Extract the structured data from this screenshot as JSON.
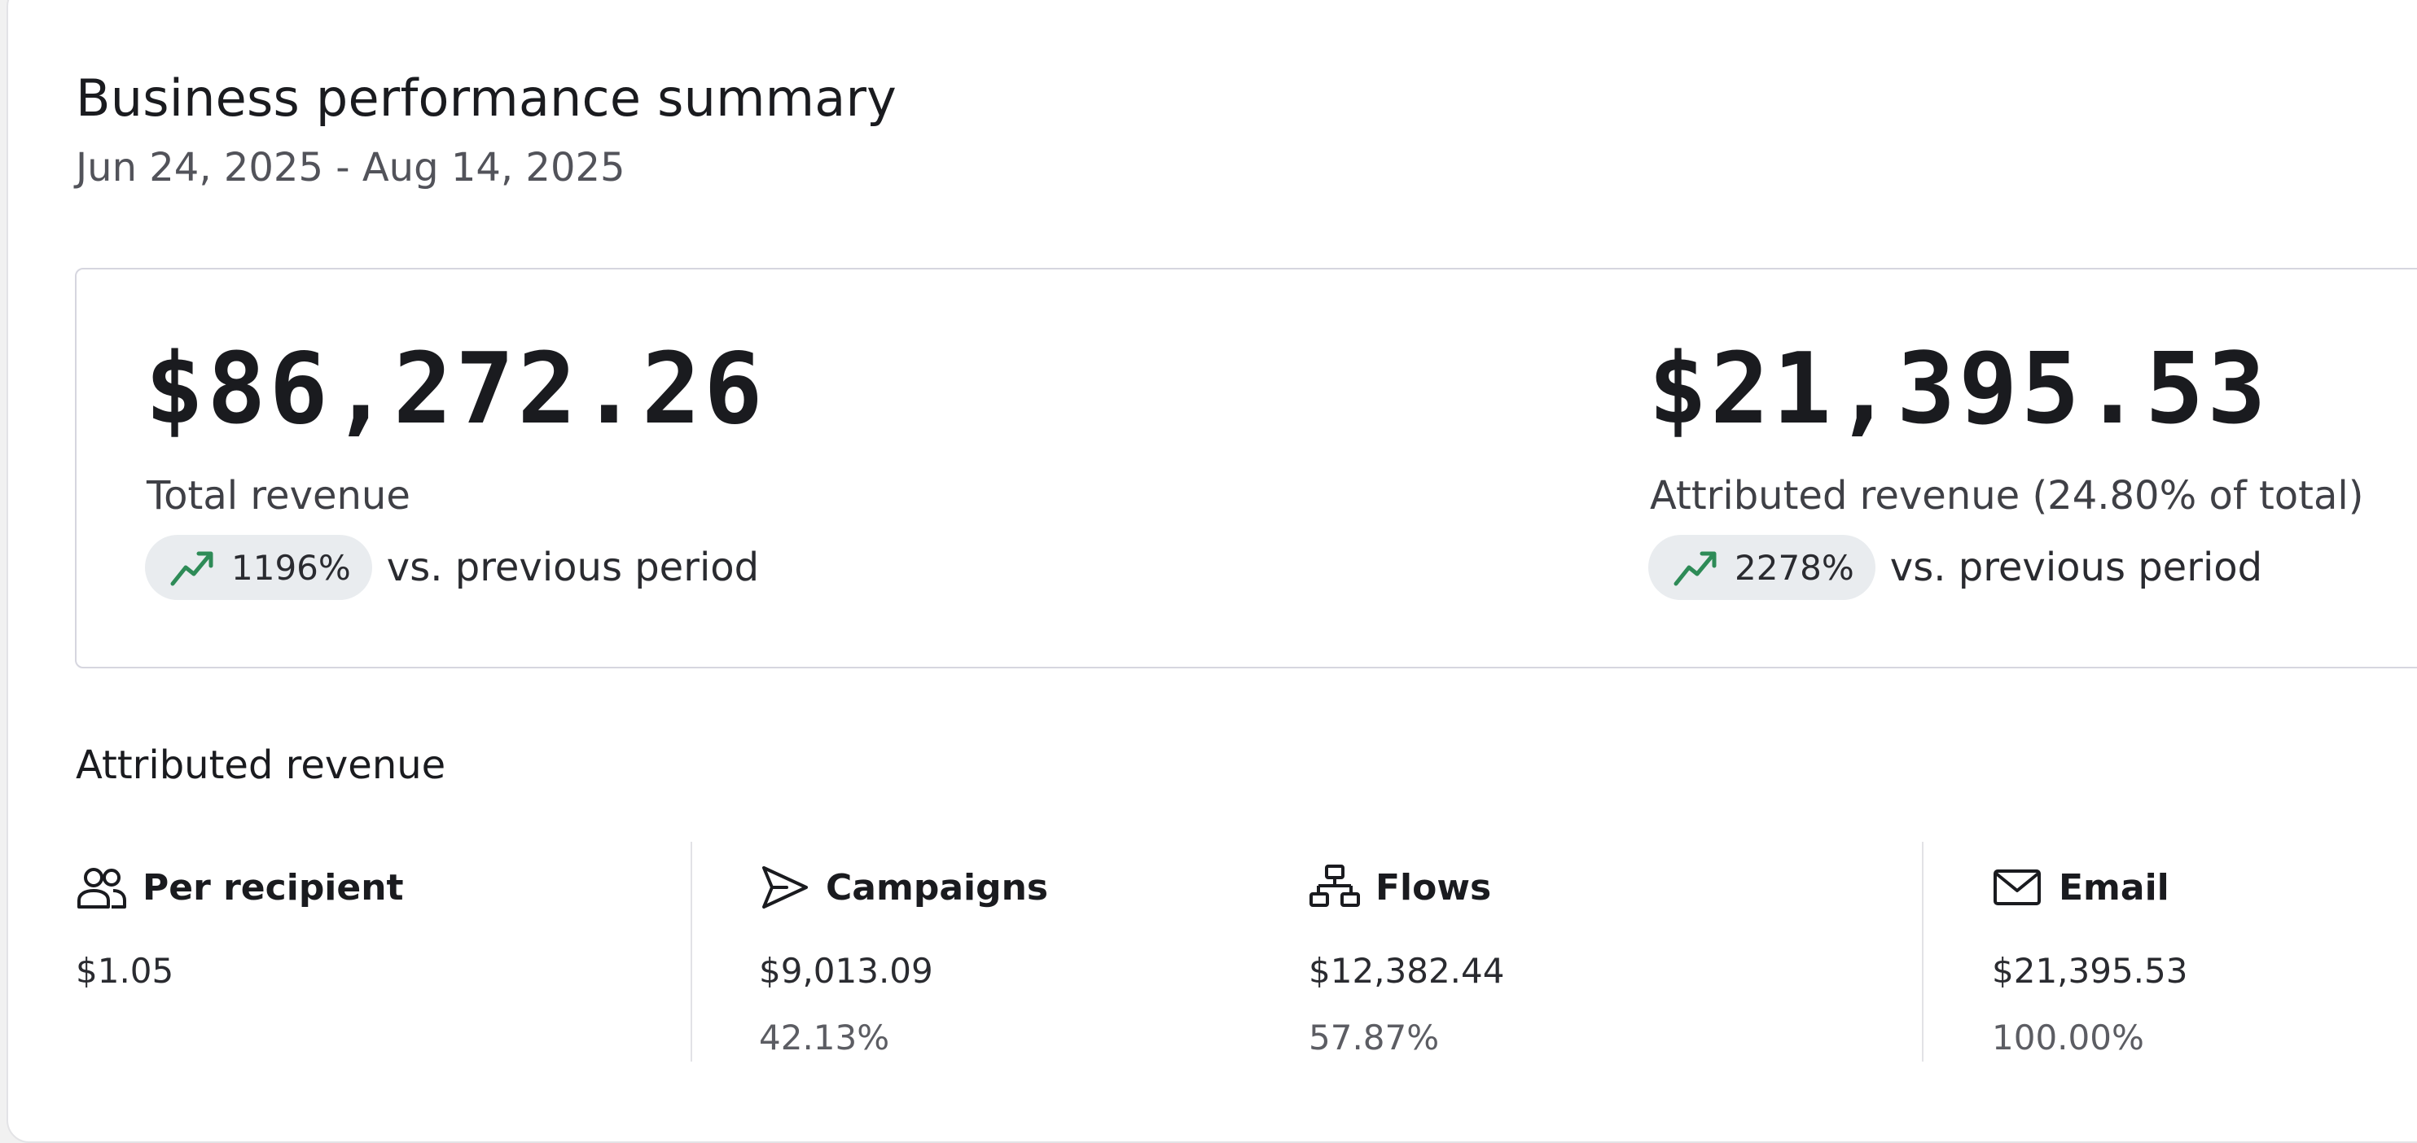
{
  "header": {
    "title": "Business performance summary",
    "date_range": "Jun 24, 2025 - Aug 14, 2025"
  },
  "summary": {
    "total": {
      "value": "$86,272.26",
      "label": "Total revenue",
      "change": "1196%",
      "change_suffix": "vs. previous period"
    },
    "attributed": {
      "value": "$21,395.53",
      "label": "Attributed revenue (24.80% of total)",
      "change": "2278%",
      "change_suffix": "vs. previous period"
    },
    "trend_icon": "trending-up-icon",
    "trend_color": "#2e8b57"
  },
  "attributed_section": {
    "title": "Attributed revenue",
    "per_recipient": {
      "icon": "users-icon",
      "label": "Per recipient",
      "amount": "$1.05"
    },
    "campaigns": {
      "icon": "send-icon",
      "label": "Campaigns",
      "amount": "$9,013.09",
      "percent": "42.13%"
    },
    "flows": {
      "icon": "flow-icon",
      "label": "Flows",
      "amount": "$12,382.44",
      "percent": "57.87%"
    },
    "email": {
      "icon": "mail-icon",
      "label": "Email",
      "amount": "$21,395.53",
      "percent": "100.00%"
    }
  }
}
